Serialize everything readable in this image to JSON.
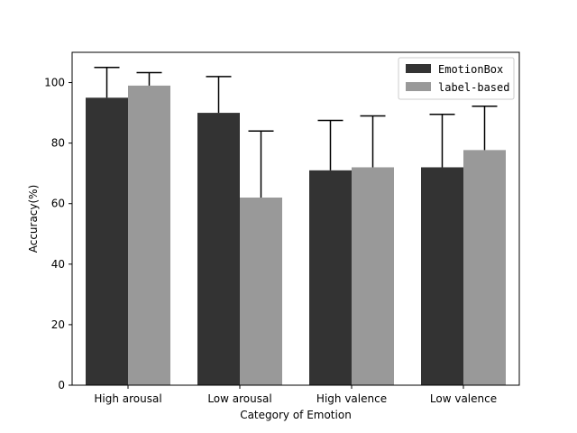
{
  "chart_data": {
    "type": "bar",
    "categories": [
      "High arousal",
      "Low arousal",
      "High valence",
      "Low valence"
    ],
    "series": [
      {
        "name": "EmotionBox",
        "values": [
          95,
          90,
          71,
          72
        ],
        "errors": [
          10,
          12,
          16.5,
          17.5
        ],
        "color": "#333333"
      },
      {
        "name": "label-based",
        "values": [
          99,
          62,
          72,
          77.7
        ],
        "errors": [
          4.3,
          22,
          17,
          14.5
        ],
        "color": "#999999"
      }
    ],
    "title": "",
    "xlabel": "Category of Emotion",
    "ylabel": "Accuracy(%)",
    "ylim": [
      0,
      110
    ],
    "yticks": [
      0,
      20,
      40,
      60,
      80,
      100
    ],
    "grid": false,
    "legend_position": "top-right"
  }
}
